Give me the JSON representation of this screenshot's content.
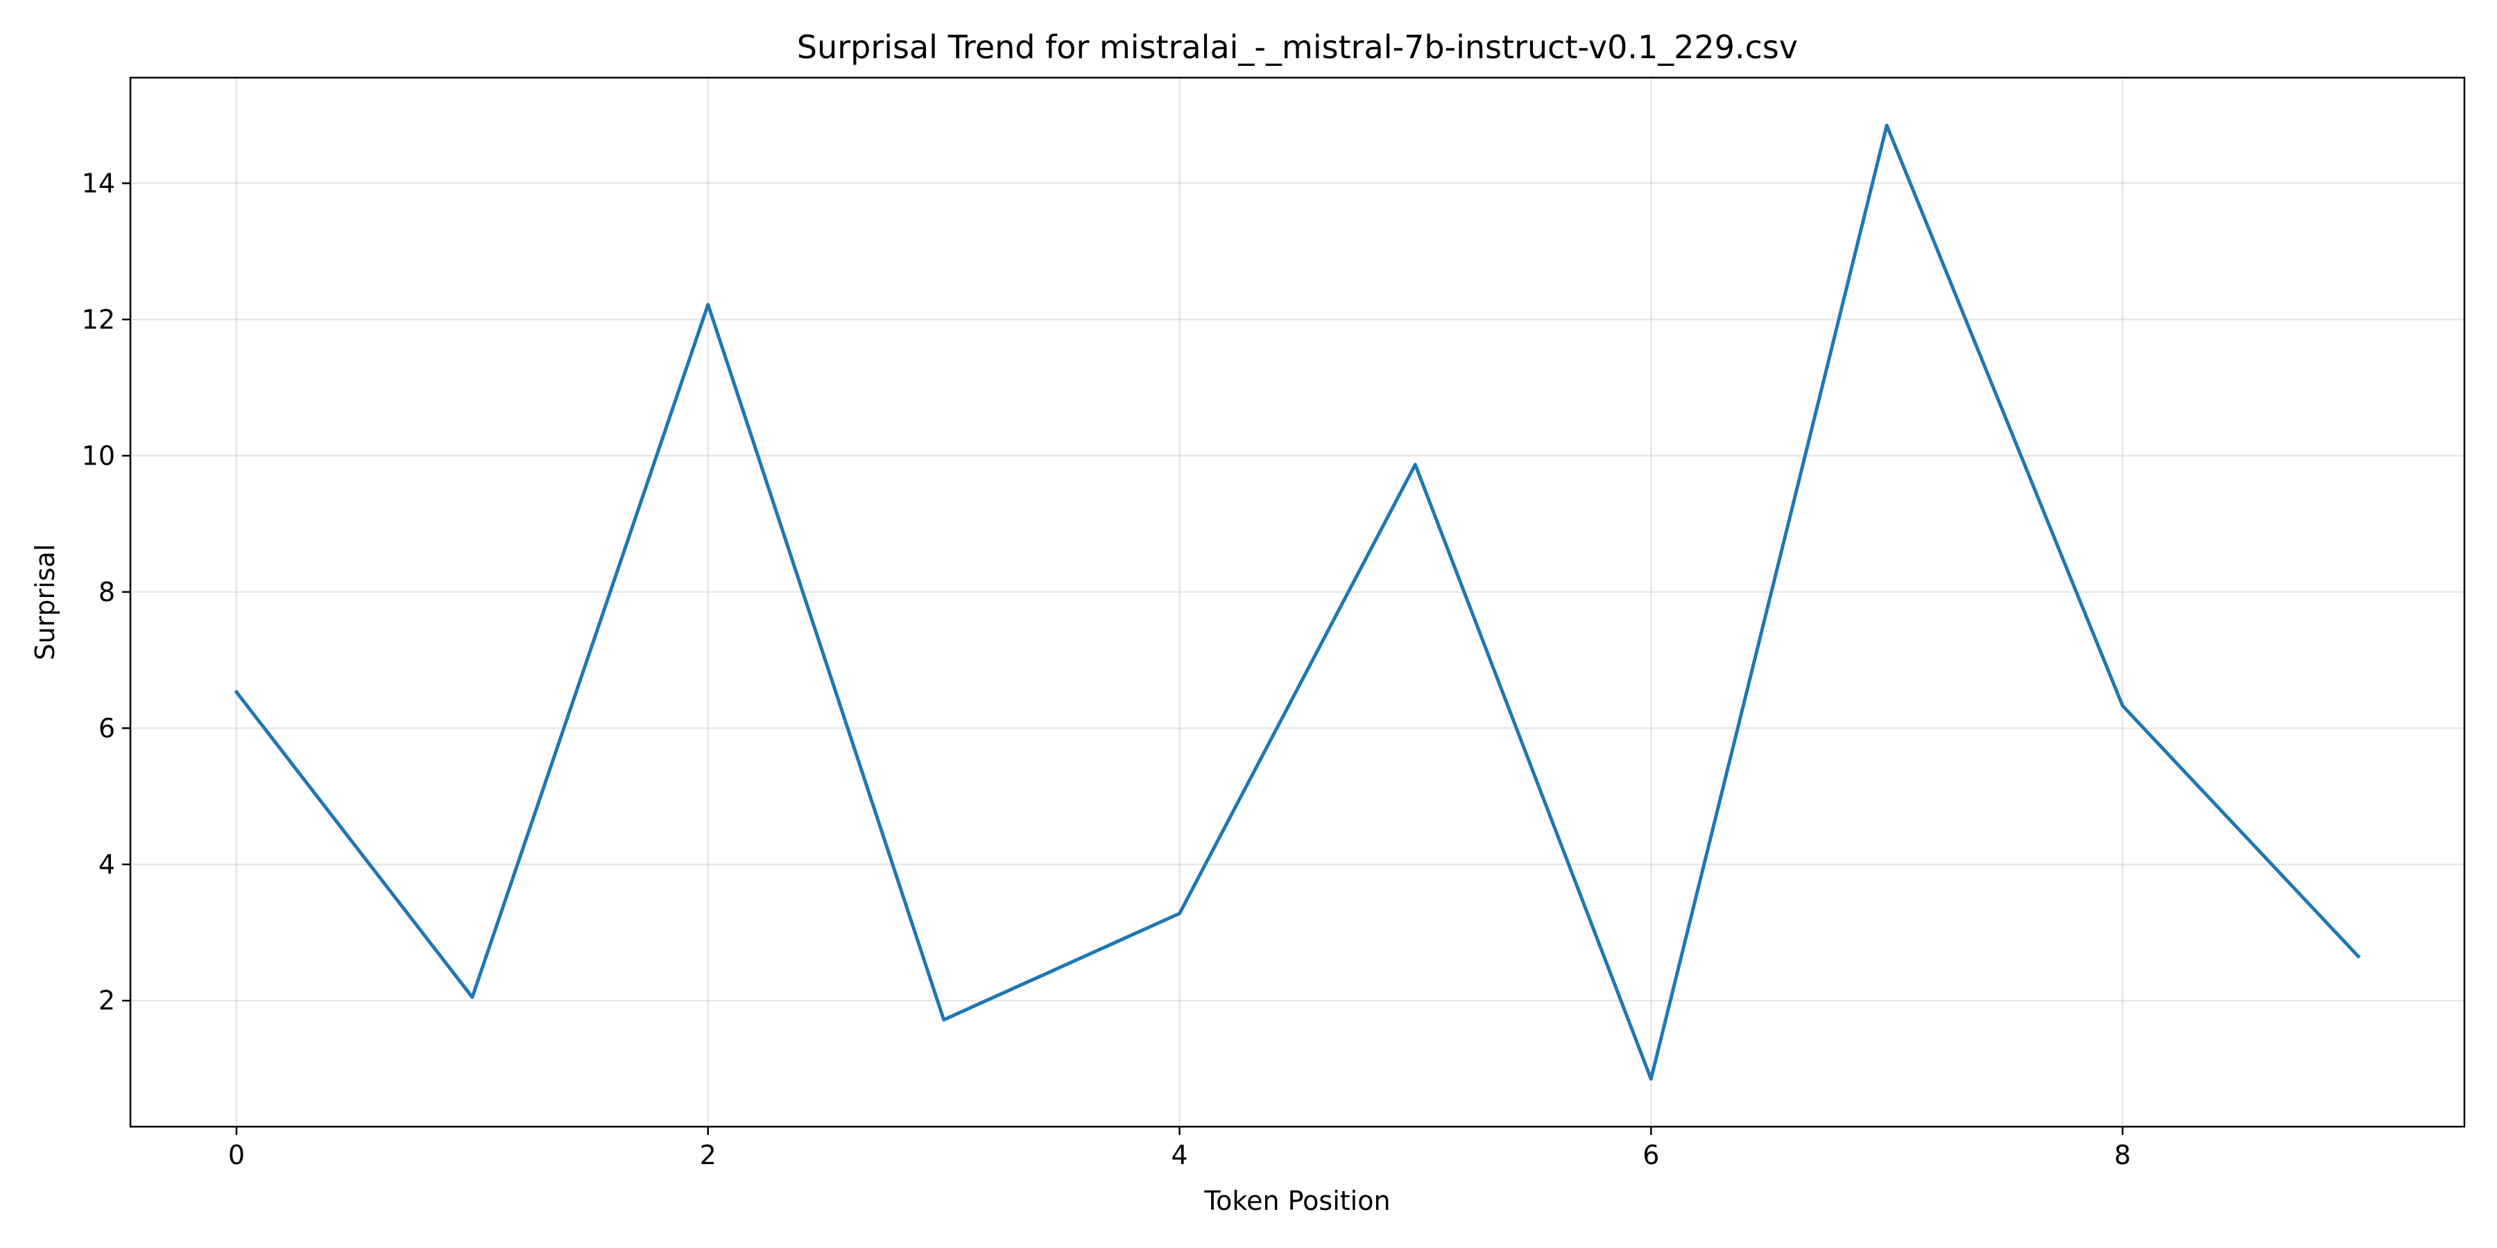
{
  "chart_data": {
    "type": "line",
    "title": "Surprisal Trend for mistralai_-_mistral-7b-instruct-v0.1_229.csv",
    "xlabel": "Token Position",
    "ylabel": "Surprisal",
    "x": [
      0,
      1,
      2,
      3,
      4,
      5,
      6,
      7,
      8,
      9
    ],
    "series": [
      {
        "values": [
          6.53,
          2.05,
          12.22,
          1.72,
          3.28,
          9.87,
          0.85,
          14.85,
          6.33,
          2.65
        ]
      }
    ],
    "xticks": [
      0,
      2,
      4,
      6,
      8
    ],
    "yticks": [
      2,
      4,
      6,
      8,
      10,
      12,
      14
    ],
    "xlim": [
      -0.45,
      9.45
    ],
    "ylim": [
      0.15,
      15.55
    ],
    "grid": true,
    "legend": "none",
    "colors": {
      "line": "#1f77b4",
      "grid": "#b0b0b0",
      "axes": "#000000"
    }
  }
}
